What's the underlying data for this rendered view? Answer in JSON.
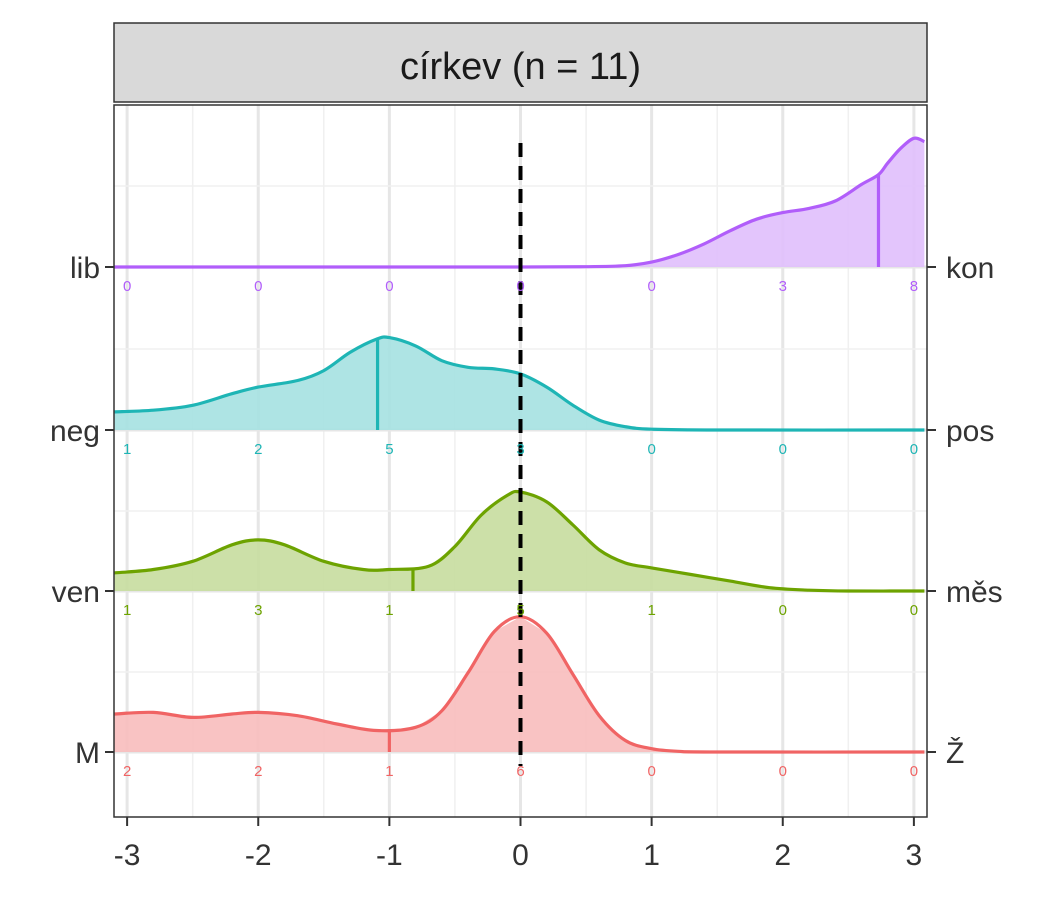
{
  "chart_data": {
    "type": "ridgeline",
    "panel_title": "církev (n = 11)",
    "xlim": [
      -3.1,
      3.1
    ],
    "x_ticks": [
      -3,
      -2,
      -1,
      0,
      1,
      2,
      3
    ],
    "x_tick_labels": [
      "-3",
      "-2",
      "-1",
      "0",
      "1",
      "2",
      "3"
    ],
    "reference_line_x": 0,
    "count_positions": [
      -3,
      -2,
      -1,
      0,
      1,
      2,
      3
    ],
    "grid": true,
    "rows": [
      {
        "left_label": "lib",
        "right_label": "kon",
        "color": "#B15EFA",
        "fill": "#E0BFFC",
        "mean": 2.73,
        "counts": [
          "0",
          "0",
          "0",
          "0",
          "0",
          "3",
          "8"
        ],
        "density": [
          [
            -3.1,
            0
          ],
          [
            -2.5,
            0
          ],
          [
            -1,
            0
          ],
          [
            0,
            0
          ],
          [
            0.5,
            0.002
          ],
          [
            0.8,
            0.008
          ],
          [
            1.0,
            0.03
          ],
          [
            1.2,
            0.075
          ],
          [
            1.4,
            0.14
          ],
          [
            1.6,
            0.22
          ],
          [
            1.8,
            0.29
          ],
          [
            2.0,
            0.33
          ],
          [
            2.2,
            0.355
          ],
          [
            2.4,
            0.4
          ],
          [
            2.6,
            0.5
          ],
          [
            2.73,
            0.56
          ],
          [
            2.8,
            0.63
          ],
          [
            2.9,
            0.72
          ],
          [
            3.0,
            0.78
          ],
          [
            3.08,
            0.76
          ]
        ]
      },
      {
        "left_label": "neg",
        "right_label": "pos",
        "color": "#1EB5B5",
        "fill": "#A5E1E1",
        "mean": -1.09,
        "counts": [
          "1",
          "2",
          "5",
          "3",
          "0",
          "0",
          "0"
        ],
        "density": [
          [
            -3.1,
            0.11
          ],
          [
            -2.8,
            0.12
          ],
          [
            -2.5,
            0.15
          ],
          [
            -2.2,
            0.22
          ],
          [
            -2.0,
            0.26
          ],
          [
            -1.7,
            0.3
          ],
          [
            -1.5,
            0.36
          ],
          [
            -1.3,
            0.47
          ],
          [
            -1.1,
            0.55
          ],
          [
            -1.0,
            0.56
          ],
          [
            -0.8,
            0.51
          ],
          [
            -0.6,
            0.42
          ],
          [
            -0.4,
            0.38
          ],
          [
            -0.2,
            0.37
          ],
          [
            0,
            0.34
          ],
          [
            0.2,
            0.26
          ],
          [
            0.4,
            0.15
          ],
          [
            0.6,
            0.06
          ],
          [
            0.8,
            0.02
          ],
          [
            1.0,
            0.005
          ],
          [
            1.5,
            0
          ],
          [
            3.08,
            0
          ]
        ]
      },
      {
        "left_label": "ven",
        "right_label": "měs",
        "color": "#6DA300",
        "fill": "#C7DD9E",
        "mean": -0.82,
        "counts": [
          "1",
          "3",
          "1",
          "5",
          "1",
          "0",
          "0"
        ],
        "density": [
          [
            -3.1,
            0.11
          ],
          [
            -2.8,
            0.13
          ],
          [
            -2.5,
            0.18
          ],
          [
            -2.2,
            0.28
          ],
          [
            -2.0,
            0.31
          ],
          [
            -1.8,
            0.28
          ],
          [
            -1.5,
            0.18
          ],
          [
            -1.2,
            0.13
          ],
          [
            -1.0,
            0.13
          ],
          [
            -0.7,
            0.15
          ],
          [
            -0.5,
            0.27
          ],
          [
            -0.3,
            0.46
          ],
          [
            -0.1,
            0.58
          ],
          [
            0,
            0.6
          ],
          [
            0.2,
            0.54
          ],
          [
            0.4,
            0.4
          ],
          [
            0.6,
            0.25
          ],
          [
            0.8,
            0.17
          ],
          [
            1.0,
            0.14
          ],
          [
            1.3,
            0.1
          ],
          [
            1.6,
            0.06
          ],
          [
            1.9,
            0.02
          ],
          [
            2.2,
            0.005
          ],
          [
            2.5,
            0
          ],
          [
            3.08,
            0
          ]
        ]
      },
      {
        "left_label": "M",
        "right_label": "Ž",
        "color": "#F06464",
        "fill": "#F8BCBC",
        "mean": -1.0,
        "counts": [
          "2",
          "2",
          "1",
          "6",
          "0",
          "0",
          "0"
        ],
        "density": [
          [
            -3.1,
            0.23
          ],
          [
            -2.8,
            0.24
          ],
          [
            -2.5,
            0.21
          ],
          [
            -2.2,
            0.23
          ],
          [
            -2.0,
            0.24
          ],
          [
            -1.7,
            0.22
          ],
          [
            -1.4,
            0.17
          ],
          [
            -1.1,
            0.13
          ],
          [
            -0.8,
            0.15
          ],
          [
            -0.6,
            0.25
          ],
          [
            -0.4,
            0.48
          ],
          [
            -0.2,
            0.73
          ],
          [
            0,
            0.82
          ],
          [
            0.2,
            0.72
          ],
          [
            0.4,
            0.47
          ],
          [
            0.6,
            0.22
          ],
          [
            0.8,
            0.07
          ],
          [
            1.0,
            0.02
          ],
          [
            1.2,
            0.004
          ],
          [
            1.5,
            0
          ],
          [
            3.08,
            0
          ]
        ]
      }
    ]
  }
}
